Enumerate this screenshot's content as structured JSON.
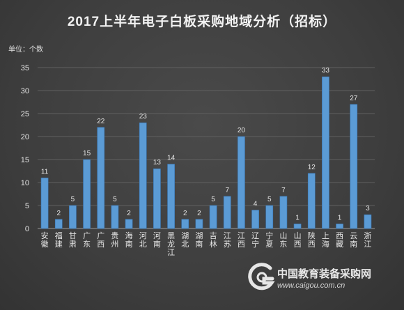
{
  "title": "2017上半年电子白板采购地域分析（招标）",
  "unit_label": "单位：个数",
  "logo": {
    "name": "中国教育装备采购网",
    "url": "www.caigou.com.cn"
  },
  "colors": {
    "bar": "#5b9bd5",
    "bar_edge": "#3a78b8",
    "axis_text": "#e6e6e6",
    "grid": "#606060"
  },
  "chart_data": {
    "type": "bar",
    "title": "2017上半年电子白板采购地域分析（招标）",
    "ylabel": "单位：个数",
    "ylim": [
      0,
      35
    ],
    "yticks": [
      0,
      5,
      10,
      15,
      20,
      25,
      30,
      35
    ],
    "grid": true,
    "categories": [
      "安徽",
      "福建",
      "甘肃",
      "广东",
      "广西",
      "贵州",
      "海南",
      "河北",
      "河南",
      "黑龙江",
      "湖北",
      "湖南",
      "吉林",
      "江苏",
      "江西",
      "辽宁",
      "宁夏",
      "山东",
      "山西",
      "陕西",
      "上海",
      "西藏",
      "云南",
      "浙江"
    ],
    "values": [
      11,
      2,
      5,
      15,
      22,
      5,
      2,
      23,
      13,
      14,
      2,
      2,
      5,
      7,
      20,
      4,
      5,
      7,
      1,
      12,
      33,
      1,
      27,
      3
    ]
  }
}
